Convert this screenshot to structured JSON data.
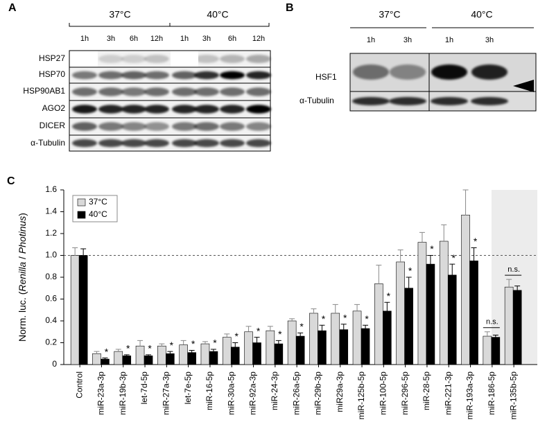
{
  "panel_a": {
    "label": "A",
    "temperatures": [
      "37°C",
      "40°C"
    ],
    "times": [
      "1h",
      "3h",
      "6h",
      "12h",
      "1h",
      "3h",
      "6h",
      "12h"
    ],
    "rows": [
      "HSP27",
      "HSP70",
      "HSP90AB1",
      "AGO2",
      "DICER",
      "α-Tubulin"
    ]
  },
  "panel_b": {
    "label": "B",
    "temperatures": [
      "37°C",
      "40°C"
    ],
    "times": [
      "1h",
      "3h",
      "1h",
      "3h"
    ],
    "rows": [
      "HSF1",
      "α-Tubulin"
    ]
  },
  "chart_data": {
    "type": "bar",
    "panel_label": "C",
    "y_label": [
      "Norm. luc. (",
      "Renilla",
      " / ",
      "Photinus",
      ")"
    ],
    "categories": [
      "Control",
      "miR-23a-3p",
      "miR-19b-3p",
      "let-7d-5p",
      "miR-27a-3p",
      "let-7e-5p",
      "miR-16-5p",
      "miR-30a-5p",
      "miR-92a-3p",
      "miR-24-3p",
      "miR-26a-5p",
      "miR-29b-3p",
      "miR29a-3p",
      "miR-125b-5p",
      "miR-100-5p",
      "miR-296-5p",
      "miR-28-5p",
      "miR-221-3p",
      "miR-193a-3p",
      "miR-186-5p",
      "miR-135b-5p"
    ],
    "series": [
      {
        "name": "37°C",
        "color": "#d9d9d9",
        "values": [
          1.0,
          0.1,
          0.12,
          0.17,
          0.17,
          0.18,
          0.19,
          0.25,
          0.3,
          0.31,
          0.4,
          0.47,
          0.47,
          0.49,
          0.74,
          0.94,
          1.12,
          1.13,
          1.37,
          0.26,
          0.71
        ],
        "errors": [
          0.07,
          0.02,
          0.02,
          0.05,
          0.02,
          0.04,
          0.02,
          0.03,
          0.05,
          0.04,
          0.02,
          0.04,
          0.08,
          0.06,
          0.17,
          0.11,
          0.09,
          0.15,
          0.23,
          0.04,
          0.07
        ]
      },
      {
        "name": "40°C",
        "color": "#000000",
        "values": [
          1.0,
          0.05,
          0.08,
          0.08,
          0.1,
          0.11,
          0.12,
          0.16,
          0.2,
          0.19,
          0.26,
          0.31,
          0.32,
          0.33,
          0.49,
          0.7,
          0.92,
          0.82,
          0.95,
          0.25,
          0.68
        ],
        "errors": [
          0.06,
          0.01,
          0.01,
          0.01,
          0.02,
          0.02,
          0.02,
          0.04,
          0.05,
          0.03,
          0.03,
          0.05,
          0.05,
          0.03,
          0.08,
          0.1,
          0.08,
          0.1,
          0.12,
          0.02,
          0.04
        ]
      }
    ],
    "significance": [
      null,
      "*",
      "*",
      "*",
      "*",
      "*",
      "*",
      "*",
      "*",
      "*",
      "*",
      "*",
      "*",
      "*",
      "*",
      "*",
      "*",
      "*",
      "*",
      "n.s.",
      "n.s."
    ],
    "ylim": [
      0,
      1.6
    ],
    "yticks": [
      0,
      0.2,
      0.4,
      0.6,
      0.8,
      {
        "value": 1,
        "label": "1.0"
      },
      1.2,
      1.4,
      1.6
    ],
    "reference_line": 1
  }
}
